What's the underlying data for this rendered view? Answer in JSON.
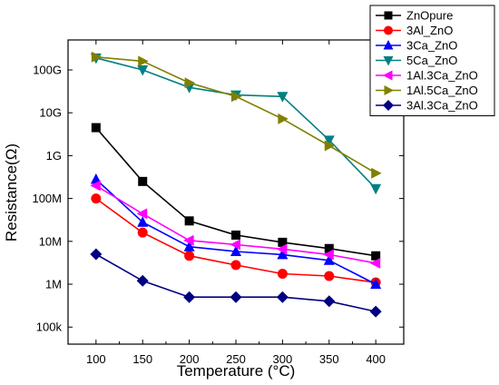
{
  "chart_data": {
    "type": "line",
    "xlabel": "Temperature (°C)",
    "ylabel": "Resistance(Ω)",
    "x": [
      100,
      150,
      200,
      250,
      300,
      350,
      400
    ],
    "xlim": [
      70,
      430
    ],
    "xticks": [
      100,
      150,
      200,
      250,
      300,
      350,
      400
    ],
    "y_scale": "log",
    "ylim": [
      40000,
      500000000000
    ],
    "yticks": [
      {
        "value": 100000,
        "label": "100k"
      },
      {
        "value": 1000000,
        "label": "1M"
      },
      {
        "value": 10000000,
        "label": "10M"
      },
      {
        "value": 100000000,
        "label": "100M"
      },
      {
        "value": 1000000000,
        "label": "1G"
      },
      {
        "value": 10000000000,
        "label": "10G"
      },
      {
        "value": 100000000000,
        "label": "100G"
      }
    ],
    "legend_position": "top-right",
    "grid": false,
    "series": [
      {
        "name": "ZnOpure",
        "color": "#000000",
        "marker": "square",
        "values": [
          4500000000.0,
          250000000.0,
          30000000.0,
          14000000.0,
          9500000.0,
          6800000.0,
          4600000.0
        ]
      },
      {
        "name": "3Al_ZnO",
        "color": "#ff0000",
        "marker": "circle",
        "values": [
          100000000.0,
          16000000.0,
          4600000.0,
          2800000.0,
          1750000.0,
          1550000.0,
          1100000.0
        ]
      },
      {
        "name": "3Ca_ZnO",
        "color": "#0000ff",
        "marker": "triangle-up",
        "values": [
          280000000.0,
          28000000.0,
          7500000.0,
          5800000.0,
          4900000.0,
          3600000.0,
          1000000.0
        ]
      },
      {
        "name": "5Ca_ZnO",
        "color": "#008080",
        "marker": "triangle-down",
        "values": [
          190000000000.0,
          100000000000.0,
          39000000000.0,
          26000000000.0,
          24000000000.0,
          2300000000.0,
          170000000.0
        ]
      },
      {
        "name": "1Al.3Ca_ZnO",
        "color": "#ff00ff",
        "marker": "triangle-left",
        "values": [
          200000000.0,
          44000000.0,
          10500000.0,
          8400000.0,
          6600000.0,
          4900000.0,
          3100000.0
        ]
      },
      {
        "name": "1Al.5Ca_ZnO",
        "color": "#808000",
        "marker": "triangle-right",
        "values": [
          200000000000.0,
          160000000000.0,
          50000000000.0,
          24000000000.0,
          7200000000.0,
          1700000000.0,
          390000000.0
        ]
      },
      {
        "name": "3Al.3Ca_ZnO",
        "color": "#000080",
        "marker": "diamond",
        "values": [
          5000000.0,
          1200000.0,
          500000.0,
          500000.0,
          500000.0,
          400000.0,
          230000.0
        ]
      }
    ]
  }
}
